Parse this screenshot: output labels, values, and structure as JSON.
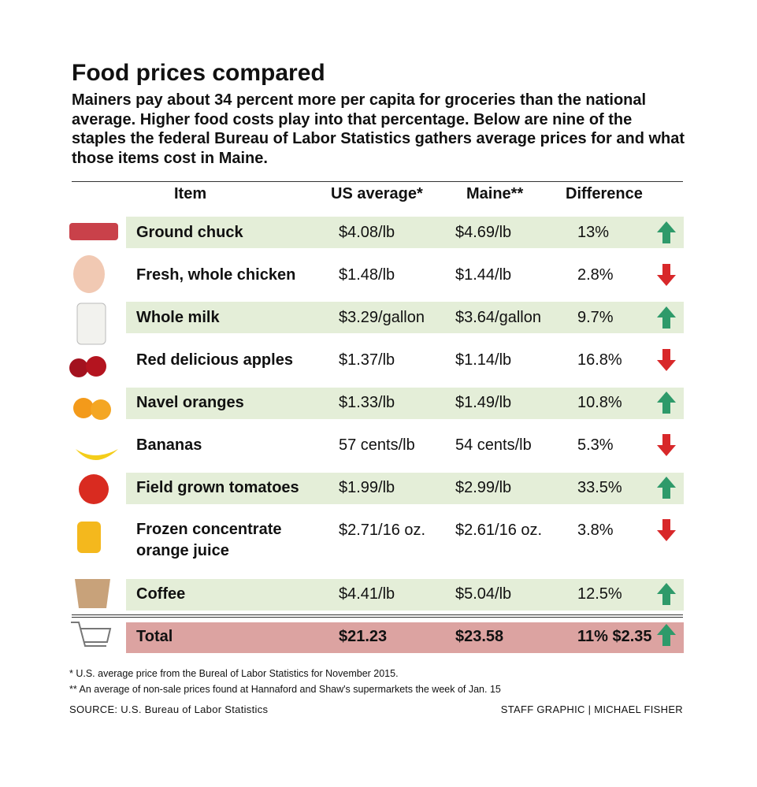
{
  "header": {
    "title": "Food prices compared",
    "subtitle": "Mainers pay about 34 percent more per capita for groceries than the national average. Higher food costs play into that percentage. Below are nine of the staples the federal Bureau of Labor Statistics gathers average prices for and what those items cost in Maine."
  },
  "table": {
    "headers": [
      "Item",
      "US average*",
      "Maine**",
      "Difference"
    ],
    "rows": [
      [
        "Ground chuck",
        "$4.08/lb",
        "$4.69/lb",
        "13%"
      ],
      [
        "Fresh, whole chicken",
        "$1.48/lb",
        "$1.44/lb",
        "2.8%"
      ],
      [
        "Whole milk",
        "$3.29/gallon",
        "$3.64/gallon",
        "9.7%"
      ],
      [
        "Red delicious apples",
        "$1.37/lb",
        "$1.14/lb",
        "16.8%"
      ],
      [
        "Navel oranges",
        "$1.33/lb",
        "$1.49/lb",
        "10.8%"
      ],
      [
        "Bananas",
        "57 cents/lb",
        "54 cents/lb",
        "5.3%"
      ],
      [
        "Field grown tomatoes",
        "$1.99/lb",
        "$2.99/lb",
        "33.5%"
      ],
      [
        "Frozen concentrate orange juice",
        "$2.71/16 oz.",
        "$2.61/16 oz.",
        "3.8%"
      ],
      [
        "Coffee",
        "$4.41/lb",
        "$5.04/lb",
        "12.5%"
      ]
    ],
    "total": [
      "Total",
      "$21.23",
      "$23.58",
      "11% $2.35"
    ]
  },
  "footer": {
    "notes": [
      "* U.S. average price from the  Bureal of Labor Statistics for November 2015.",
      "** An average of non-sale prices found at Hannaford and Shaw's supermarkets the week of Jan. 15"
    ],
    "source": "SOURCE: U.S. Bureau of Labor Statistics",
    "credit": "STAFF GRAPHIC | MICHAEL FISHER"
  }
}
